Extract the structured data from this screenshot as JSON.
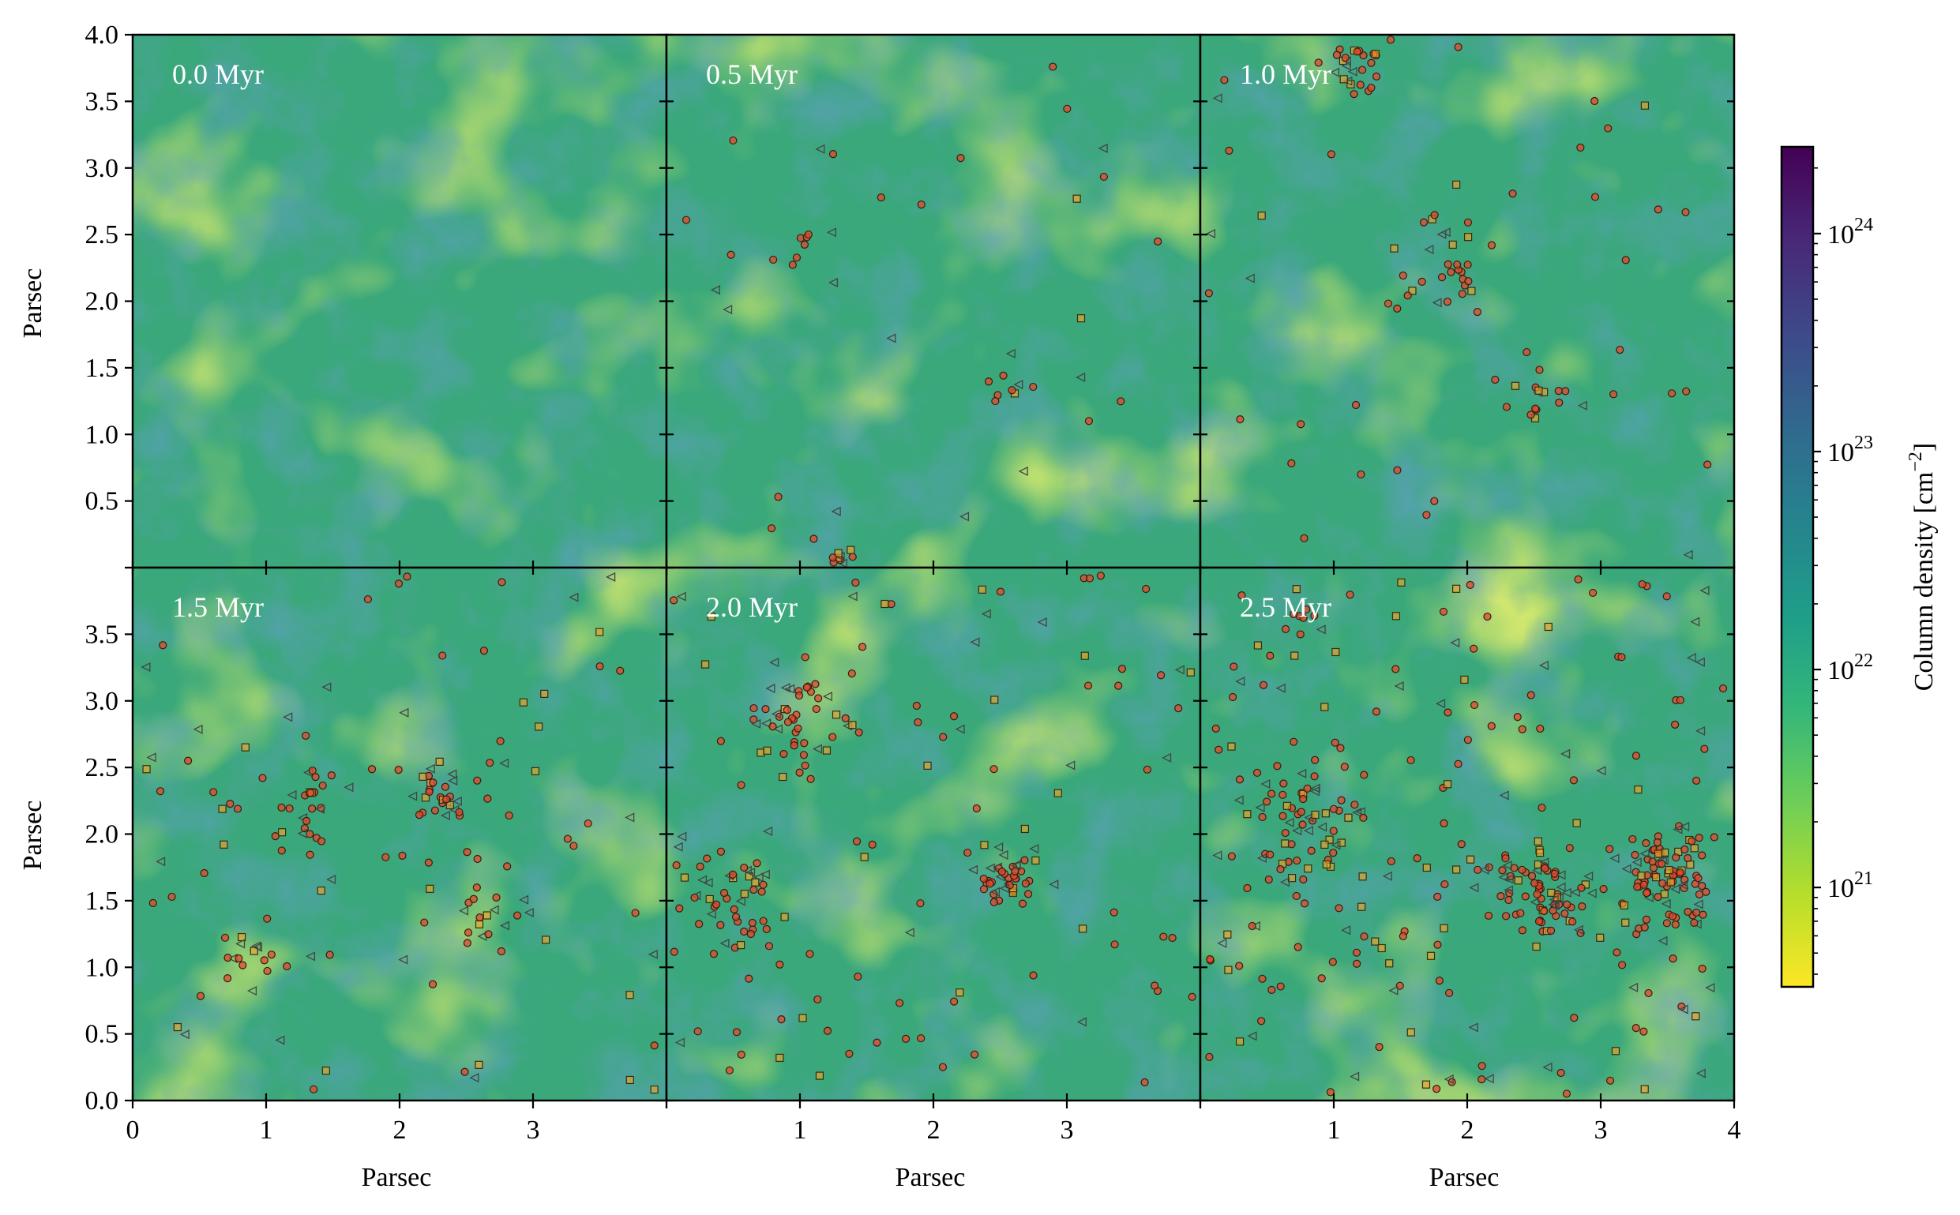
{
  "chart_data": {
    "type": "heatmap",
    "title": "",
    "grid": false,
    "layout": "2 rows x 3 columns of panels sharing axes",
    "xlabel": "Parsec",
    "ylabel": "Parsec",
    "xlim": [
      0,
      4
    ],
    "ylim": [
      0,
      4
    ],
    "panels": [
      {
        "label": "0.0 Myr"
      },
      {
        "label": "0.5 Myr"
      },
      {
        "label": "1.0 Myr"
      },
      {
        "label": "1.5 Myr"
      },
      {
        "label": "2.0 Myr"
      },
      {
        "label": "2.5 Myr"
      }
    ],
    "axes": {
      "top_row_y_ticks": [
        "4.0",
        "3.5",
        "3.0",
        "2.5",
        "2.0",
        "1.5",
        "1.0",
        "0.5"
      ],
      "bottom_row_y_ticks": [
        "3.5",
        "3.0",
        "2.5",
        "2.0",
        "1.5",
        "1.0",
        "0.5",
        "0.0"
      ],
      "x_ticks_first_col": [
        "0",
        "1",
        "2",
        "3"
      ],
      "x_ticks_mid_col": [
        "1",
        "2",
        "3"
      ],
      "x_ticks_last_col": [
        "1",
        "2",
        "3",
        "4"
      ]
    },
    "colorbar": {
      "label": "Column density [cm",
      "label_exp": "−2",
      "label_close": "]",
      "scale": "log",
      "range": [
        3.5e+20,
        2.5e+24
      ],
      "ticks": [
        {
          "value": 1e+21,
          "mantissa": "10",
          "exp": "21"
        },
        {
          "value": 1e+22,
          "mantissa": "10",
          "exp": "22"
        },
        {
          "value": 1e+23,
          "mantissa": "10",
          "exp": "23"
        },
        {
          "value": 1e+24,
          "mantissa": "10",
          "exp": "24"
        }
      ],
      "colormap": "viridis_r",
      "colors": [
        "#fde725",
        "#b5de2b",
        "#6ece58",
        "#35b779",
        "#1f9e89",
        "#26828e",
        "#31688e",
        "#3e4989",
        "#482878",
        "#440154"
      ]
    },
    "marker_styles": {
      "circle": {
        "fill": "#e24a2a",
        "edge": "#3a1a12"
      },
      "square": {
        "fill": "#f5a623",
        "edge": "#3a2a10"
      },
      "triangle": {
        "fill": "none",
        "edge": "#444444"
      }
    },
    "markers_approx_count": [
      0,
      60,
      110,
      170,
      230,
      420
    ]
  }
}
